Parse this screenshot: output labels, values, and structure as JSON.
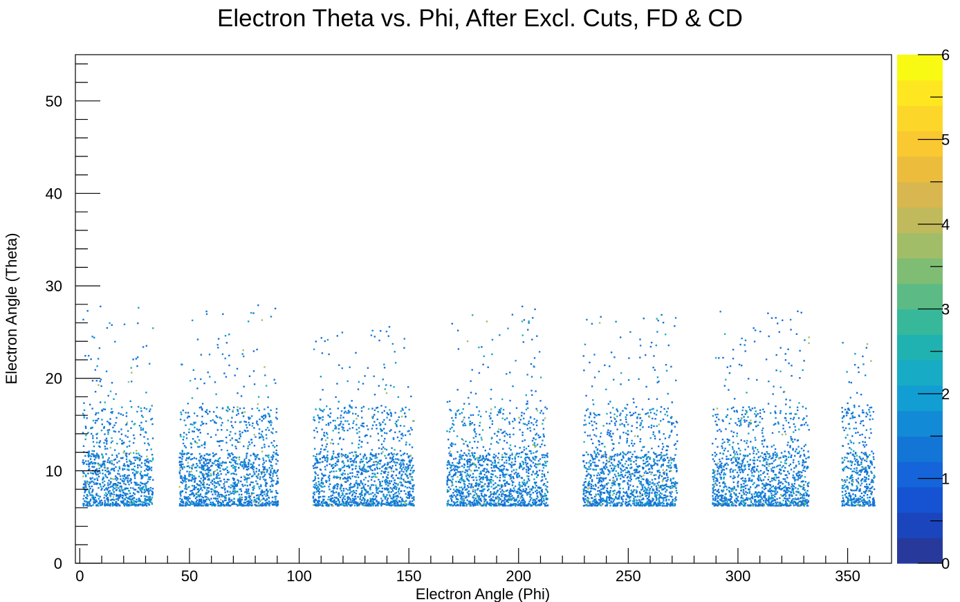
{
  "chart_data": {
    "type": "heatmap",
    "title": "Electron Theta vs. Phi, After Excl. Cuts, FD & CD",
    "xlabel": "Electron Angle (Phi)",
    "ylabel": "Electron Angle (Theta)",
    "xlim": [
      -2,
      370
    ],
    "ylim": [
      0,
      55
    ],
    "x_ticks": [
      0,
      50,
      100,
      150,
      200,
      250,
      300,
      350
    ],
    "y_ticks": [
      0,
      10,
      20,
      30,
      40,
      50
    ],
    "x_tick_labels": [
      "0",
      "50",
      "100",
      "150",
      "200",
      "250",
      "300",
      "350"
    ],
    "y_tick_labels": [
      "0",
      "10",
      "20",
      "30",
      "40",
      "50"
    ],
    "colorbar": {
      "range": [
        0,
        6
      ],
      "ticks": [
        0,
        1,
        2,
        3,
        4,
        5,
        6
      ],
      "tick_labels": [
        "0",
        "1",
        "2",
        "3",
        "4",
        "5",
        "6"
      ],
      "colors": [
        "#273a9c",
        "#1b45bd",
        "#1553d2",
        "#1564d9",
        "#1376d6",
        "#138ad6",
        "#129ed3",
        "#17abc5",
        "#20b2b0",
        "#38b89b",
        "#5cbb85",
        "#7fbd74",
        "#a1bd67",
        "#c0ba5c",
        "#d8b650",
        "#ecbd3d",
        "#fac830",
        "#fdd62a",
        "#fee620",
        "#f9fa14"
      ]
    },
    "sectors": [
      {
        "phi_range": [
          1,
          33
        ],
        "theta_core": [
          6.3,
          17
        ],
        "theta_sparse_max": 28
      },
      {
        "phi_range": [
          45,
          90
        ],
        "theta_core": [
          6.3,
          17
        ],
        "theta_sparse_max": 28
      },
      {
        "phi_range": [
          106,
          152
        ],
        "theta_core": [
          6.3,
          17
        ],
        "theta_sparse_max": 26
      },
      {
        "phi_range": [
          167,
          213
        ],
        "theta_core": [
          6.3,
          17
        ],
        "theta_sparse_max": 28
      },
      {
        "phi_range": [
          229,
          272
        ],
        "theta_core": [
          6.3,
          17
        ],
        "theta_sparse_max": 27
      },
      {
        "phi_range": [
          288,
          332
        ],
        "theta_core": [
          6.3,
          17
        ],
        "theta_sparse_max": 28
      },
      {
        "phi_range": [
          347,
          362
        ],
        "theta_core": [
          6.3,
          17
        ],
        "theta_sparse_max": 24
      }
    ],
    "bin_width": {
      "phi": 0.5,
      "theta": 0.25
    },
    "max_bin_content": 6,
    "grid": false,
    "legend": "none"
  }
}
